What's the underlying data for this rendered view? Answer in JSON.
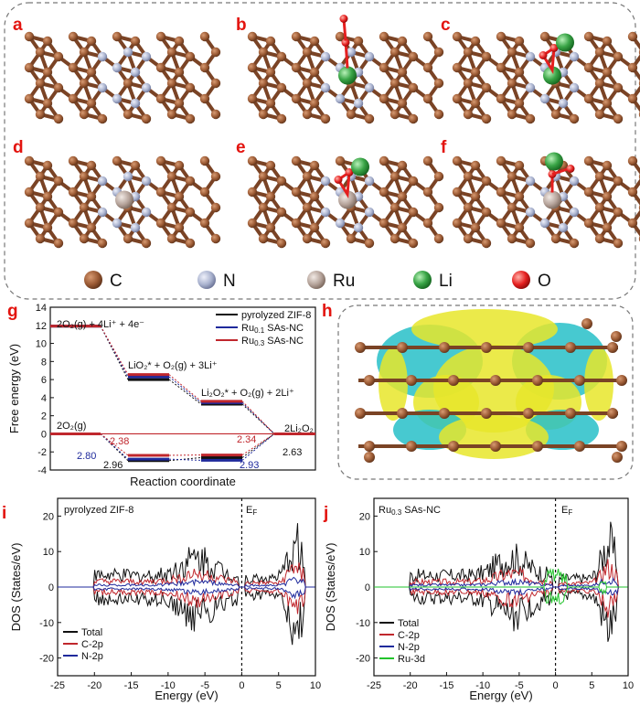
{
  "panels": {
    "a": "a",
    "b": "b",
    "c": "c",
    "d": "d",
    "e": "e",
    "f": "f",
    "g": "g",
    "h": "h",
    "i": "i",
    "j": "j"
  },
  "atom_legend": [
    {
      "symbol": "C",
      "color": "#9b5a34"
    },
    {
      "symbol": "N",
      "color": "#aab3cf"
    },
    {
      "symbol": "Ru",
      "color": "#b5a39a"
    },
    {
      "symbol": "Li",
      "color": "#3aa547"
    },
    {
      "symbol": "O",
      "color": "#e51f1f"
    }
  ],
  "colors": {
    "carbon": "#9b5a34",
    "nitrogen": "#aab3cf",
    "ruthenium": "#b5a39a",
    "lithium": "#3aa547",
    "oxygen": "#e51f1f",
    "iso_yellow": "#e8e62a",
    "iso_cyan": "#27c0c8",
    "zif": "#111111",
    "ru01": "#1f2a9c",
    "ru03": "#c0272d",
    "ru3d": "#22c32c"
  },
  "chart_data": [
    {
      "id": "g",
      "type": "line",
      "xlabel": "Reaction coordinate",
      "ylabel": "Free energy (eV)",
      "ylim": [
        -4,
        14
      ],
      "yticks": [
        "14",
        "12",
        "10",
        "8",
        "6",
        "4",
        "2",
        "0",
        "-2",
        "-4"
      ],
      "states": [
        "2O2(g) + 4Li+ + 4e-",
        "LiO2* + O2(g) + 3Li+",
        "Li2O2* + O2(g) + 2Li+",
        "2Li2O2"
      ],
      "state_labels": {
        "s0": "2O₂(g) + 4Li⁺ + 4e⁻",
        "s1": "LiO₂* + O₂(g) + 3Li⁺",
        "s2": "Li₂O₂* + O₂(g) + 2Li⁺",
        "s3": "2Li₂O₂",
        "s0b": "2O₂(g)"
      },
      "series": [
        {
          "name": "pyrolyzed ZIF-8",
          "color": "#111111",
          "U0": [
            11.92,
            6.0,
            3.28,
            0
          ],
          "Ueq": [
            0,
            -2.96,
            -2.63,
            0
          ]
        },
        {
          "name": "Ru0.1 SAs-NC",
          "color": "#1f2a9c",
          "U0": [
            11.92,
            6.3,
            3.45,
            0
          ],
          "Ueq": [
            0,
            -2.8,
            -2.93,
            0
          ]
        },
        {
          "name": "Ru0.3 SAs-NC",
          "color": "#c0272d",
          "U0": [
            11.92,
            6.55,
            3.6,
            0
          ],
          "Ueq": [
            0,
            -2.38,
            -2.34,
            0
          ]
        }
      ],
      "annotations": [
        {
          "text": "2.38",
          "color": "#c0272d"
        },
        {
          "text": "2.80",
          "color": "#1f2a9c"
        },
        {
          "text": "2.96",
          "color": "#111111"
        },
        {
          "text": "2.34",
          "color": "#c0272d"
        },
        {
          "text": "2.93",
          "color": "#1f2a9c"
        },
        {
          "text": "2.63",
          "color": "#111111"
        }
      ],
      "legend": {
        "s1": "pyrolyzed ZIF-8",
        "s2": "Ru",
        "s2sub": "0.1",
        "s2rest": " SAs-NC",
        "s3": "Ru",
        "s3sub": "0.3",
        "s3rest": " SAs-NC"
      }
    },
    {
      "id": "i",
      "type": "line",
      "title": "pyrolyzed ZIF-8",
      "xlabel": "Energy (eV)",
      "ylabel": "DOS (States/eV)",
      "xlim": [
        -25,
        10
      ],
      "ylim": [
        -25,
        25
      ],
      "xticks": [
        "-25",
        "-20",
        "-15",
        "-10",
        "-5",
        "0",
        "5",
        "10"
      ],
      "yticks": [
        "20",
        "10",
        "0",
        "-10",
        "-20"
      ],
      "fermi_label": "E",
      "fermi_sub": "F",
      "series": [
        {
          "name": "Total",
          "color": "#111111"
        },
        {
          "name": "C-2p",
          "color": "#c0272d"
        },
        {
          "name": "N-2p",
          "color": "#1f2a9c"
        }
      ]
    },
    {
      "id": "j",
      "type": "line",
      "title_main": "Ru",
      "title_sub": "0.3",
      "title_rest": " SAs-NC",
      "xlabel": "Energy (eV)",
      "ylabel": "DOS (States/eV)",
      "xlim": [
        -25,
        10
      ],
      "ylim": [
        -25,
        25
      ],
      "xticks": [
        "-25",
        "-20",
        "-15",
        "-10",
        "-5",
        "0",
        "5",
        "10"
      ],
      "yticks": [
        "20",
        "10",
        "0",
        "-10",
        "-20"
      ],
      "fermi_label": "E",
      "fermi_sub": "F",
      "series": [
        {
          "name": "Total",
          "color": "#111111"
        },
        {
          "name": "C-2p",
          "color": "#c0272d"
        },
        {
          "name": "N-2p",
          "color": "#1f2a9c"
        },
        {
          "name": "Ru-3d",
          "color": "#22c32c"
        }
      ]
    }
  ]
}
